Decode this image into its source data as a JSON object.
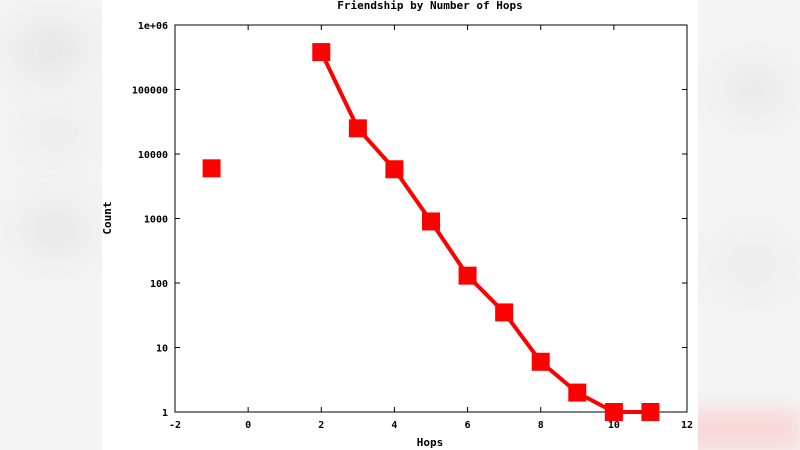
{
  "chart_data": {
    "type": "line",
    "title": "Friendship by Number of Hops",
    "xlabel": "Hops",
    "ylabel": "Count",
    "xlim": [
      -2,
      12
    ],
    "ylim": [
      1,
      1000000
    ],
    "y_scale": "log",
    "x_ticks": [
      "-2",
      "0",
      "2",
      "4",
      "6",
      "8",
      "10",
      "12"
    ],
    "y_ticks": [
      "1",
      "10",
      "100",
      "1000",
      "10000",
      "100000",
      "1e+06"
    ],
    "line_color": "#ff0000",
    "marker": "square",
    "grid": false,
    "isolated_point": {
      "x": -1,
      "y": 6000
    },
    "x": [
      2,
      3,
      4,
      5,
      6,
      7,
      8,
      9,
      10,
      11
    ],
    "y": [
      380000,
      25000,
      5800,
      900,
      130,
      35,
      6,
      2,
      1,
      1
    ]
  }
}
